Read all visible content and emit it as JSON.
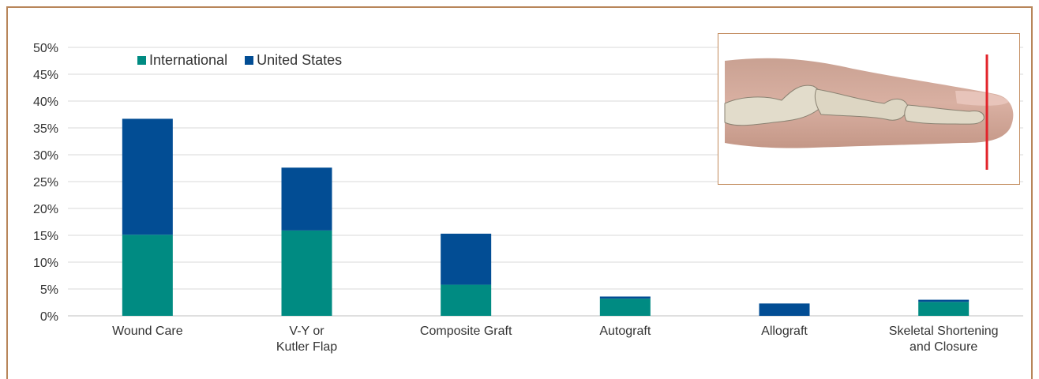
{
  "colors": {
    "international": "#008b82",
    "united_states": "#024d94",
    "frame_border": "#b8865a",
    "gridline": "#d9d9d9",
    "axis_text": "#333333"
  },
  "legend": {
    "items": [
      {
        "label": "International",
        "color": "#008b82"
      },
      {
        "label": "United States",
        "color": "#024d94"
      }
    ],
    "position": "top-left"
  },
  "inset": {
    "description_icon": "finger-xray-icon",
    "marker_color": "#e2242b"
  },
  "chart_data": {
    "type": "bar",
    "stacked": true,
    "title": "",
    "xlabel": "",
    "ylabel": "",
    "ylim": [
      0,
      50
    ],
    "y_unit": "%",
    "y_ticks": [
      "0%",
      "5%",
      "10%",
      "15%",
      "20%",
      "25%",
      "30%",
      "35%",
      "40%",
      "45%",
      "50%"
    ],
    "grid": true,
    "categories": [
      [
        "Wound Care"
      ],
      [
        "V-Y or",
        "Kutler Flap"
      ],
      [
        "Composite Graft"
      ],
      [
        "Autograft"
      ],
      [
        "Allograft"
      ],
      [
        "Skeletal Shortening",
        "and Closure"
      ]
    ],
    "series": [
      {
        "name": "International",
        "values": [
          15.1,
          15.9,
          5.8,
          3.2,
          0.0,
          2.6
        ]
      },
      {
        "name": "United States",
        "values": [
          21.6,
          11.7,
          9.5,
          0.4,
          2.3,
          0.4
        ]
      }
    ]
  }
}
